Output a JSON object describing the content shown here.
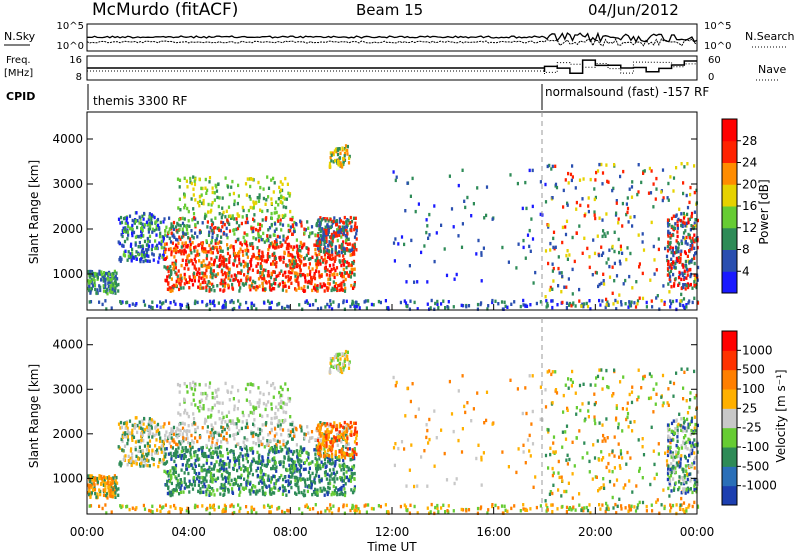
{
  "header": {
    "station": "McMurdo (fitACF)",
    "beam": "Beam 15",
    "date": "04/Jun/2012"
  },
  "aux_panels": {
    "nsky_label": "N.Sky",
    "nsky_ticks": [
      "10^5",
      "10^0"
    ],
    "nsearch_label": "N.Search",
    "nsearch_ticks": [
      "10^5",
      "10^0"
    ],
    "freq_label": "Freq.",
    "freq_unit": "[MHz]",
    "freq_ticks": [
      "16",
      "8"
    ],
    "nave_label": "Nave",
    "nave_ticks": [
      "60",
      "0"
    ],
    "cpid_label": "CPID",
    "cpid_segments": [
      {
        "name": "themis 3300 RF",
        "start_hour": 0,
        "end_hour": 18
      },
      {
        "name": "normalsound (fast) -157 RF",
        "start_hour": 18,
        "end_hour": 24
      }
    ]
  },
  "time_axis": {
    "label": "Time UT",
    "ticks": [
      "00:00",
      "04:00",
      "08:00",
      "12:00",
      "16:00",
      "20:00",
      "00:00"
    ],
    "range_hours": [
      0,
      24
    ]
  },
  "chart_data": [
    {
      "type": "heatmap",
      "name": "power",
      "ylabel": "Slant Range [km]",
      "yticks": [
        "1000",
        "2000",
        "3000",
        "4000"
      ],
      "ylim": [
        200,
        4600
      ],
      "colorbar_label": "Power [dB]",
      "colorbar_ticks": [
        "4",
        "8",
        "12",
        "16",
        "20",
        "24",
        "28"
      ],
      "colorbar_colors": [
        "#1a1aff",
        "#2a4fb0",
        "#2e8b57",
        "#66cc33",
        "#e6d200",
        "#ff8c00",
        "#ff2200",
        "#ff0000"
      ],
      "mode_change_hour": 18
    },
    {
      "type": "heatmap",
      "name": "velocity",
      "ylabel": "Slant Range [km]",
      "yticks": [
        "1000",
        "2000",
        "3000",
        "4000"
      ],
      "ylim": [
        200,
        4600
      ],
      "colorbar_label": "Velocity [m s⁻¹]",
      "colorbar_ticks": [
        "1000",
        "500",
        "100",
        "25",
        "-25",
        "-100",
        "-500",
        "-1000"
      ],
      "colorbar_colors": [
        "#1c3fb0",
        "#2a6fb8",
        "#2e8b57",
        "#66cc33",
        "#c8c8c8",
        "#ffb000",
        "#ff7f00",
        "#ff3300",
        "#ff0000"
      ],
      "mode_change_hour": 18
    }
  ]
}
